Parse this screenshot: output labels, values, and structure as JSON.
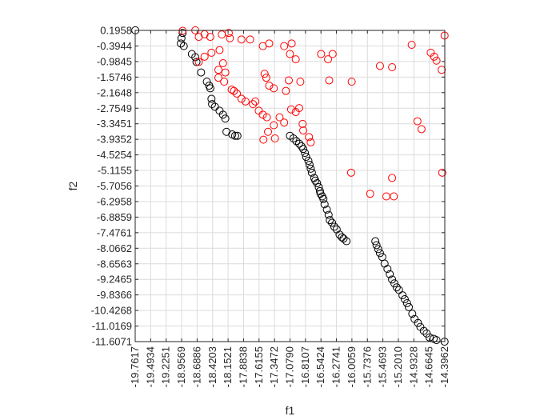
{
  "chart_data": {
    "type": "scatter",
    "title": "",
    "xlabel": "f1",
    "ylabel": "f2",
    "xlim": [
      -19.7617,
      -14.3962
    ],
    "ylim": [
      -11.6071,
      0.1958
    ],
    "grid": true,
    "x_ticks": [
      "-19.7617",
      "-19.4934",
      "-19.2251",
      "-18.9569",
      "-18.6886",
      "-18.4203",
      "-18.1521",
      "-17.8838",
      "-17.6155",
      "-17.3472",
      "-17.0790",
      "-16.8107",
      "-16.5424",
      "-16.2741",
      "-16.0059",
      "-15.7376",
      "-15.4693",
      "-15.2010",
      "-14.9328",
      "-14.6645",
      "-14.3962"
    ],
    "y_ticks": [
      "0.1958",
      "-0.3944",
      "-0.9845",
      "-1.5746",
      "-2.1648",
      "-2.7549",
      "-3.3451",
      "-3.9352",
      "-4.5254",
      "-5.1155",
      "-5.7056",
      "-6.2958",
      "-6.8859",
      "-7.4761",
      "-8.0662",
      "-8.6563",
      "-9.2465",
      "-9.8366",
      "-10.4268",
      "-11.0169",
      "-11.6071"
    ],
    "series": [
      {
        "color": "#000000",
        "marker": "circle-open",
        "points": [
          [
            -19.76,
            0.2
          ],
          [
            -18.94,
            0.1
          ],
          [
            -18.96,
            -0.1
          ],
          [
            -18.97,
            -0.3
          ],
          [
            -18.92,
            -0.4
          ],
          [
            -18.78,
            -0.7
          ],
          [
            -18.72,
            -0.82
          ],
          [
            -18.7,
            -1.0
          ],
          [
            -18.62,
            -1.4
          ],
          [
            -18.52,
            -1.75
          ],
          [
            -18.48,
            -1.9
          ],
          [
            -18.46,
            -2.0
          ],
          [
            -18.44,
            -2.4
          ],
          [
            -18.43,
            -2.6
          ],
          [
            -18.38,
            -2.7
          ],
          [
            -18.3,
            -2.85
          ],
          [
            -18.24,
            -3.0
          ],
          [
            -18.2,
            -3.15
          ],
          [
            -18.18,
            -3.65
          ],
          [
            -18.08,
            -3.75
          ],
          [
            -18.03,
            -3.8
          ],
          [
            -17.99,
            -3.8
          ],
          [
            -17.08,
            -3.8
          ],
          [
            -17.02,
            -3.9
          ],
          [
            -16.97,
            -4.0
          ],
          [
            -16.92,
            -4.1
          ],
          [
            -16.88,
            -4.2
          ],
          [
            -16.85,
            -4.3
          ],
          [
            -16.82,
            -4.45
          ],
          [
            -16.8,
            -4.6
          ],
          [
            -16.76,
            -4.75
          ],
          [
            -16.74,
            -4.9
          ],
          [
            -16.72,
            -5.05
          ],
          [
            -16.7,
            -5.2
          ],
          [
            -16.66,
            -5.4
          ],
          [
            -16.64,
            -5.5
          ],
          [
            -16.61,
            -5.6
          ],
          [
            -16.58,
            -5.75
          ],
          [
            -16.56,
            -5.9
          ],
          [
            -16.55,
            -6.0
          ],
          [
            -16.52,
            -6.1
          ],
          [
            -16.5,
            -6.2
          ],
          [
            -16.48,
            -6.4
          ],
          [
            -16.44,
            -6.6
          ],
          [
            -16.41,
            -6.8
          ],
          [
            -16.39,
            -7.0
          ],
          [
            -16.35,
            -7.1
          ],
          [
            -16.31,
            -7.25
          ],
          [
            -16.27,
            -7.35
          ],
          [
            -16.22,
            -7.55
          ],
          [
            -16.18,
            -7.65
          ],
          [
            -16.15,
            -7.7
          ],
          [
            -16.1,
            -7.8
          ],
          [
            -15.6,
            -7.8
          ],
          [
            -15.58,
            -7.95
          ],
          [
            -15.55,
            -8.1
          ],
          [
            -15.52,
            -8.25
          ],
          [
            -15.48,
            -8.4
          ],
          [
            -15.44,
            -8.65
          ],
          [
            -15.39,
            -8.85
          ],
          [
            -15.35,
            -9.05
          ],
          [
            -15.31,
            -9.25
          ],
          [
            -15.27,
            -9.4
          ],
          [
            -15.23,
            -9.55
          ],
          [
            -15.19,
            -9.65
          ],
          [
            -15.13,
            -9.85
          ],
          [
            -15.09,
            -10.0
          ],
          [
            -15.05,
            -10.15
          ],
          [
            -15.02,
            -10.3
          ],
          [
            -14.96,
            -10.55
          ],
          [
            -14.92,
            -10.75
          ],
          [
            -14.86,
            -10.9
          ],
          [
            -14.82,
            -11.05
          ],
          [
            -14.76,
            -11.2
          ],
          [
            -14.71,
            -11.3
          ],
          [
            -14.66,
            -11.45
          ],
          [
            -14.59,
            -11.5
          ],
          [
            -14.54,
            -11.55
          ],
          [
            -14.4,
            -11.61
          ]
        ]
      },
      {
        "color": "#ff0000",
        "marker": "circle-open",
        "points": [
          [
            -18.94,
            0.18
          ],
          [
            -18.72,
            0.2
          ],
          [
            -18.56,
            0.05
          ],
          [
            -18.26,
            0.04
          ],
          [
            -18.14,
            0.1
          ],
          [
            -18.66,
            -0.05
          ],
          [
            -18.46,
            -0.05
          ],
          [
            -18.12,
            -0.1
          ],
          [
            -17.92,
            -0.15
          ],
          [
            -17.77,
            -0.15
          ],
          [
            -17.55,
            -0.4
          ],
          [
            -17.44,
            -0.3
          ],
          [
            -17.18,
            -0.4
          ],
          [
            -17.05,
            -0.3
          ],
          [
            -17.08,
            -0.7
          ],
          [
            -16.98,
            -0.9
          ],
          [
            -16.54,
            -0.7
          ],
          [
            -16.34,
            -0.7
          ],
          [
            -16.42,
            -0.9
          ],
          [
            -14.97,
            -0.35
          ],
          [
            -18.3,
            -0.55
          ],
          [
            -18.44,
            -0.65
          ],
          [
            -18.56,
            -0.8
          ],
          [
            -18.66,
            -1.0
          ],
          [
            -18.24,
            -1.05
          ],
          [
            -18.32,
            -1.3
          ],
          [
            -18.2,
            -1.4
          ],
          [
            -18.32,
            -1.6
          ],
          [
            -18.22,
            -1.75
          ],
          [
            -18.09,
            -2.05
          ],
          [
            -18.05,
            -2.1
          ],
          [
            -18.0,
            -2.2
          ],
          [
            -17.92,
            -2.4
          ],
          [
            -17.85,
            -2.5
          ],
          [
            -17.72,
            -2.6
          ],
          [
            -17.52,
            -1.45
          ],
          [
            -17.49,
            -1.6
          ],
          [
            -17.44,
            -1.9
          ],
          [
            -17.36,
            -2.0
          ],
          [
            -17.15,
            -2.1
          ],
          [
            -17.1,
            -1.7
          ],
          [
            -16.9,
            -1.75
          ],
          [
            -16.4,
            -1.7
          ],
          [
            -16.01,
            -1.75
          ],
          [
            -17.68,
            -2.5
          ],
          [
            -17.62,
            -2.85
          ],
          [
            -17.55,
            -3.0
          ],
          [
            -17.48,
            -3.1
          ],
          [
            -17.36,
            -3.4
          ],
          [
            -17.26,
            -3.1
          ],
          [
            -17.18,
            -3.3
          ],
          [
            -17.06,
            -2.8
          ],
          [
            -16.98,
            -2.9
          ],
          [
            -16.92,
            -2.75
          ],
          [
            -16.86,
            -3.35
          ],
          [
            -16.85,
            -3.6
          ],
          [
            -16.75,
            -3.85
          ],
          [
            -16.72,
            -4.05
          ],
          [
            -17.54,
            -3.95
          ],
          [
            -17.46,
            -3.65
          ],
          [
            -17.34,
            -3.9
          ],
          [
            -16.02,
            -5.2
          ],
          [
            -15.69,
            -6.0
          ],
          [
            -15.41,
            -6.1
          ],
          [
            -15.28,
            -6.1
          ],
          [
            -15.31,
            -5.4
          ],
          [
            -15.31,
            -1.2
          ],
          [
            -15.52,
            -1.15
          ],
          [
            -14.87,
            -3.25
          ],
          [
            -14.8,
            -3.55
          ],
          [
            -14.64,
            -0.65
          ],
          [
            -14.58,
            -0.8
          ],
          [
            -14.45,
            -1.3
          ],
          [
            -14.4,
            0.0
          ],
          [
            -14.44,
            -5.2
          ],
          [
            -14.54,
            -0.95
          ]
        ]
      }
    ]
  }
}
